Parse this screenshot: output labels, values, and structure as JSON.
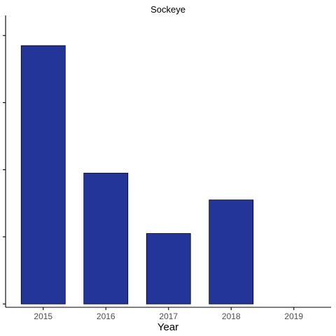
{
  "chart_data": {
    "type": "bar",
    "title": "Sockeye",
    "xlabel": "Year",
    "ylabel": "",
    "categories": [
      "2015",
      "2016",
      "2017",
      "2018",
      "2019"
    ],
    "values": [
      3.85,
      1.95,
      1.05,
      1.55,
      0
    ],
    "ylim": [
      -0.05,
      4.3
    ],
    "yticks": [
      0,
      1,
      2,
      3,
      4
    ],
    "ytick_labels_visible": false,
    "grid": false,
    "legend": "none",
    "bar_color": "#24359a"
  }
}
